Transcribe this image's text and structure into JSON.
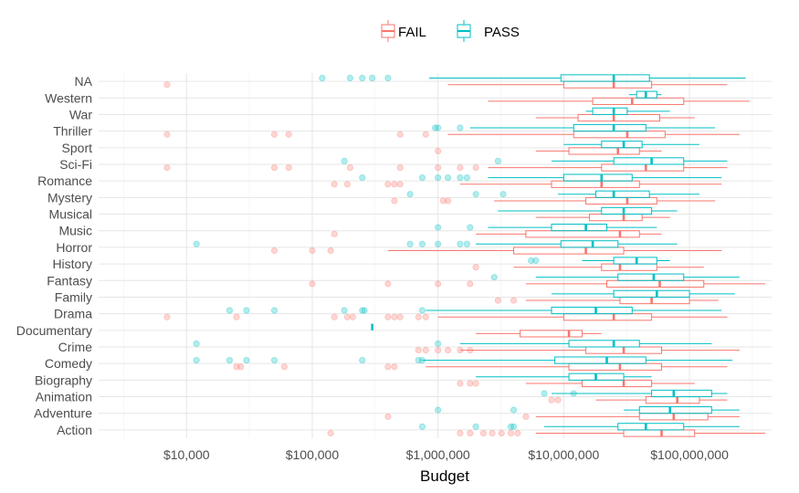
{
  "chart_data": {
    "type": "boxplot",
    "orientation": "horizontal",
    "title": "",
    "xlabel": "Budget",
    "ylabel": "",
    "x_scale": "log10",
    "xlim": [
      2000,
      450000000
    ],
    "x_ticks": [
      10000,
      100000,
      1000000,
      10000000,
      100000000
    ],
    "x_tick_labels": [
      "$10,000",
      "$100,000",
      "$1,000,000",
      "$10,000,000",
      "$100,000,000"
    ],
    "categories": [
      "NA",
      "Western",
      "War",
      "Thriller",
      "Sport",
      "Sci-Fi",
      "Romance",
      "Mystery",
      "Musical",
      "Music",
      "Horror",
      "History",
      "Fantasy",
      "Family",
      "Drama",
      "Documentary",
      "Crime",
      "Comedy",
      "Biography",
      "Animation",
      "Adventure",
      "Action"
    ],
    "legend": {
      "position": "top",
      "entries": [
        "FAIL",
        "PASS"
      ]
    },
    "grid": true,
    "colors": {
      "FAIL": "#f8766d",
      "PASS": "#00bfc4"
    },
    "series": [
      {
        "name": "FAIL",
        "boxes": [
          {
            "category": "NA",
            "whisker_low": 1200000,
            "q1": 10000000,
            "median": 25000000,
            "q3": 50000000,
            "whisker_high": 200000000,
            "outliers": [
              7000
            ]
          },
          {
            "category": "Western",
            "whisker_low": 2500000,
            "q1": 17000000,
            "median": 35000000,
            "q3": 90000000,
            "whisker_high": 300000000,
            "outliers": []
          },
          {
            "category": "War",
            "whisker_low": 6000000,
            "q1": 13000000,
            "median": 25000000,
            "q3": 58000000,
            "whisker_high": 110000000,
            "outliers": []
          },
          {
            "category": "Thriller",
            "whisker_low": 1200000,
            "q1": 12000000,
            "median": 32000000,
            "q3": 64000000,
            "whisker_high": 250000000,
            "outliers": [
              7000,
              50000,
              65000,
              500000,
              800000
            ]
          },
          {
            "category": "Sport",
            "whisker_low": 6000000,
            "q1": 11000000,
            "median": 27000000,
            "q3": 40000000,
            "whisker_high": 60000000,
            "outliers": [
              1000000
            ]
          },
          {
            "category": "Sci-Fi",
            "whisker_low": 2500000,
            "q1": 20000000,
            "median": 45000000,
            "q3": 90000000,
            "whisker_high": 200000000,
            "outliers": [
              7000,
              50000,
              65000,
              200000,
              500000,
              1000000,
              1500000,
              2000000
            ]
          },
          {
            "category": "Romance",
            "whisker_low": 1500000,
            "q1": 8000000,
            "median": 20000000,
            "q3": 40000000,
            "whisker_high": 180000000,
            "outliers": [
              150000,
              190000,
              400000,
              450000,
              500000
            ]
          },
          {
            "category": "Mystery",
            "whisker_low": 2800000,
            "q1": 15000000,
            "median": 32000000,
            "q3": 55000000,
            "whisker_high": 160000000,
            "outliers": [
              450000,
              1100000,
              1200000
            ]
          },
          {
            "category": "Musical",
            "whisker_low": 6000000,
            "q1": 16000000,
            "median": 30000000,
            "q3": 42000000,
            "whisker_high": 70000000,
            "outliers": []
          },
          {
            "category": "Music",
            "whisker_low": 2000000,
            "q1": 5000000,
            "median": 28000000,
            "q3": 40000000,
            "whisker_high": 60000000,
            "outliers": [
              150000
            ]
          },
          {
            "category": "Horror",
            "whisker_low": 400000,
            "q1": 4000000,
            "median": 15000000,
            "q3": 30000000,
            "whisker_high": 180000000,
            "outliers": [
              50000,
              100000,
              140000
            ]
          },
          {
            "category": "History",
            "whisker_low": 4000000,
            "q1": 20000000,
            "median": 28000000,
            "q3": 55000000,
            "whisker_high": 130000000,
            "outliers": [
              2000000
            ]
          },
          {
            "category": "Fantasy",
            "whisker_low": 5000000,
            "q1": 22000000,
            "median": 58000000,
            "q3": 130000000,
            "whisker_high": 400000000,
            "outliers": [
              100000,
              400000,
              1000000,
              1800000
            ]
          },
          {
            "category": "Family",
            "whisker_low": 5000000,
            "q1": 28000000,
            "median": 50000000,
            "q3": 100000000,
            "whisker_high": 170000000,
            "outliers": [
              3000000,
              4000000
            ]
          },
          {
            "category": "Drama",
            "whisker_low": 1000000,
            "q1": 10000000,
            "median": 25000000,
            "q3": 50000000,
            "whisker_high": 200000000,
            "outliers": [
              7000,
              25000,
              150000,
              190000,
              210000,
              400000,
              450000,
              500000,
              700000,
              800000
            ]
          },
          {
            "category": "Documentary",
            "whisker_low": 2000000,
            "q1": 4500000,
            "median": 11000000,
            "q3": 14000000,
            "whisker_high": 20000000,
            "outliers": []
          },
          {
            "category": "Crime",
            "whisker_low": 1500000,
            "q1": 15000000,
            "median": 30000000,
            "q3": 60000000,
            "whisker_high": 250000000,
            "outliers": [
              700000,
              800000,
              1000000,
              1200000,
              1500000,
              1800000
            ]
          },
          {
            "category": "Comedy",
            "whisker_low": 800000,
            "q1": 11000000,
            "median": 28000000,
            "q3": 60000000,
            "whisker_high": 200000000,
            "outliers": [
              25000,
              27000,
              60000,
              400000,
              450000
            ]
          },
          {
            "category": "Biography",
            "whisker_low": 5000000,
            "q1": 14000000,
            "median": 30000000,
            "q3": 50000000,
            "whisker_high": 110000000,
            "outliers": [
              1500000,
              1800000,
              2000000
            ]
          },
          {
            "category": "Animation",
            "whisker_low": 18000000,
            "q1": 45000000,
            "median": 80000000,
            "q3": 120000000,
            "whisker_high": 200000000,
            "outliers": [
              8000000,
              9000000
            ]
          },
          {
            "category": "Adventure",
            "whisker_low": 6000000,
            "q1": 40000000,
            "median": 75000000,
            "q3": 140000000,
            "whisker_high": 250000000,
            "outliers": [
              400000,
              5000000
            ]
          },
          {
            "category": "Action",
            "whisker_low": 6000000,
            "q1": 30000000,
            "median": 60000000,
            "q3": 110000000,
            "whisker_high": 400000000,
            "outliers": [
              140000,
              1500000,
              1800000,
              2300000,
              2700000,
              3200000,
              3800000,
              4300000
            ]
          }
        ]
      },
      {
        "name": "PASS",
        "boxes": [
          {
            "category": "NA",
            "whisker_low": 850000,
            "q1": 9500000,
            "median": 25000000,
            "q3": 48000000,
            "whisker_high": 280000000,
            "outliers": [
              120000,
              200000,
              250000,
              300000,
              400000
            ]
          },
          {
            "category": "Western",
            "whisker_low": 33000000,
            "q1": 38000000,
            "median": 45000000,
            "q3": 55000000,
            "whisker_high": 60000000,
            "outliers": []
          },
          {
            "category": "War",
            "whisker_low": 15000000,
            "q1": 17000000,
            "median": 25000000,
            "q3": 32000000,
            "whisker_high": 70000000,
            "outliers": []
          },
          {
            "category": "Thriller",
            "whisker_low": 1800000,
            "q1": 12000000,
            "median": 25000000,
            "q3": 45000000,
            "whisker_high": 160000000,
            "outliers": [
              950000,
              1000000,
              1500000
            ]
          },
          {
            "category": "Sport",
            "whisker_low": 10000000,
            "q1": 20000000,
            "median": 30000000,
            "q3": 42000000,
            "whisker_high": 120000000,
            "outliers": []
          },
          {
            "category": "Sci-Fi",
            "whisker_low": 8000000,
            "q1": 25000000,
            "median": 50000000,
            "q3": 90000000,
            "whisker_high": 200000000,
            "outliers": [
              180000,
              3000000
            ]
          },
          {
            "category": "Romance",
            "whisker_low": 2500000,
            "q1": 10000000,
            "median": 20000000,
            "q3": 35000000,
            "whisker_high": 180000000,
            "outliers": [
              250000,
              750000,
              1000000,
              1200000,
              1500000,
              1700000
            ]
          },
          {
            "category": "Mystery",
            "whisker_low": 9000000,
            "q1": 18000000,
            "median": 25000000,
            "q3": 48000000,
            "whisker_high": 120000000,
            "outliers": [
              600000,
              2000000,
              3300000
            ]
          },
          {
            "category": "Musical",
            "whisker_low": 3000000,
            "q1": 20000000,
            "median": 30000000,
            "q3": 50000000,
            "whisker_high": 80000000,
            "outliers": []
          },
          {
            "category": "Music",
            "whisker_low": 2500000,
            "q1": 8000000,
            "median": 15000000,
            "q3": 22000000,
            "whisker_high": 55000000,
            "outliers": [
              1000000,
              1800000
            ]
          },
          {
            "category": "Horror",
            "whisker_low": 2000000,
            "q1": 9500000,
            "median": 17000000,
            "q3": 27000000,
            "whisker_high": 80000000,
            "outliers": [
              12000,
              600000,
              750000,
              1000000,
              1500000,
              1700000
            ]
          },
          {
            "category": "History",
            "whisker_low": 14000000,
            "q1": 25000000,
            "median": 38000000,
            "q3": 55000000,
            "whisker_high": 70000000,
            "outliers": [
              5500000,
              6000000
            ]
          },
          {
            "category": "Fantasy",
            "whisker_low": 6000000,
            "q1": 27000000,
            "median": 52000000,
            "q3": 90000000,
            "whisker_high": 250000000,
            "outliers": [
              2800000
            ]
          },
          {
            "category": "Family",
            "whisker_low": 8000000,
            "q1": 25000000,
            "median": 55000000,
            "q3": 100000000,
            "whisker_high": 230000000,
            "outliers": []
          },
          {
            "category": "Drama",
            "whisker_low": 800000,
            "q1": 8000000,
            "median": 18000000,
            "q3": 35000000,
            "whisker_high": 180000000,
            "outliers": [
              22000,
              30000,
              50000,
              180000,
              250000,
              260000,
              750000
            ]
          },
          {
            "category": "Documentary",
            "whisker_low": 300000,
            "q1": 300000,
            "median": 300000,
            "q3": 300000,
            "whisker_high": 300000,
            "outliers": []
          },
          {
            "category": "Crime",
            "whisker_low": 1500000,
            "q1": 11000000,
            "median": 25000000,
            "q3": 40000000,
            "whisker_high": 150000000,
            "outliers": [
              12000,
              1000000
            ]
          },
          {
            "category": "Comedy",
            "whisker_low": 750000,
            "q1": 8500000,
            "median": 22000000,
            "q3": 45000000,
            "whisker_high": 220000000,
            "outliers": [
              12000,
              22000,
              30000,
              50000,
              250000,
              700000,
              750000
            ]
          },
          {
            "category": "Biography",
            "whisker_low": 2000000,
            "q1": 11000000,
            "median": 18000000,
            "q3": 30000000,
            "whisker_high": 50000000,
            "outliers": []
          },
          {
            "category": "Animation",
            "whisker_low": 8000000,
            "q1": 50000000,
            "median": 75000000,
            "q3": 150000000,
            "whisker_high": 200000000,
            "outliers": [
              7000000,
              12000000
            ]
          },
          {
            "category": "Adventure",
            "whisker_low": 30000000,
            "q1": 40000000,
            "median": 70000000,
            "q3": 150000000,
            "whisker_high": 250000000,
            "outliers": [
              1000000,
              4000000
            ]
          },
          {
            "category": "Action",
            "whisker_low": 7000000,
            "q1": 27000000,
            "median": 45000000,
            "q3": 90000000,
            "whisker_high": 250000000,
            "outliers": [
              750000,
              2000000,
              3800000,
              4000000
            ]
          }
        ]
      }
    ]
  }
}
